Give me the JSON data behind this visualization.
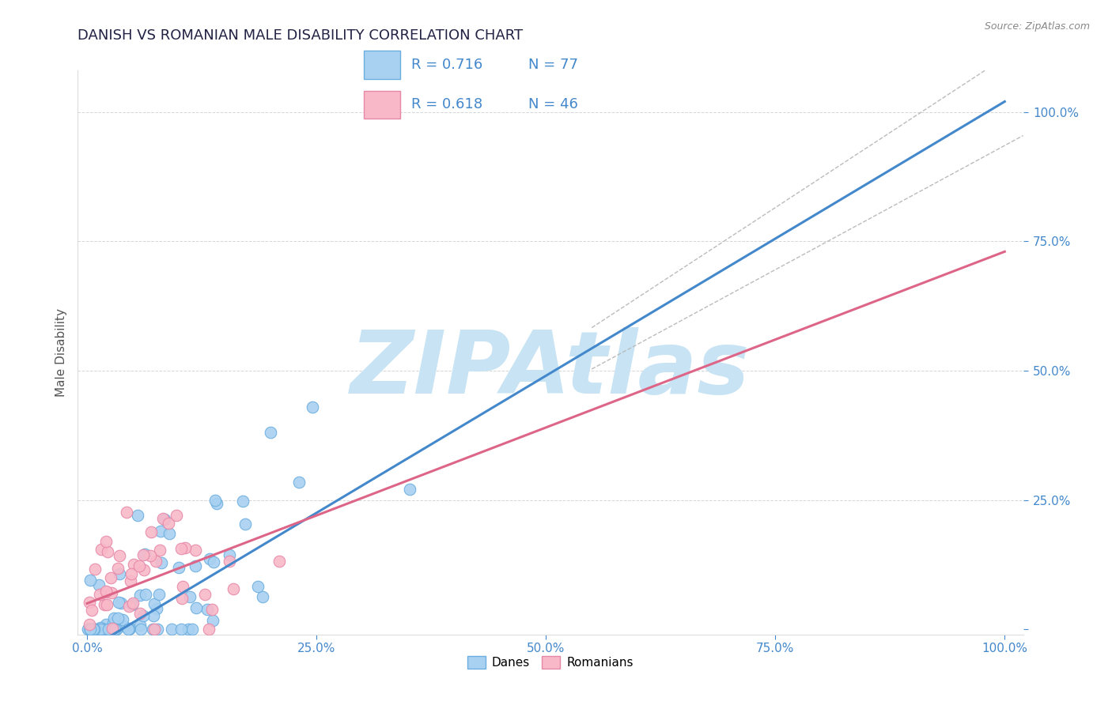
{
  "title": "DANISH VS ROMANIAN MALE DISABILITY CORRELATION CHART",
  "source_text": "Source: ZipAtlas.com",
  "ylabel": "Male Disability",
  "xlabel": "",
  "xlim": [
    -0.01,
    1.02
  ],
  "ylim": [
    -0.01,
    1.08
  ],
  "xticks": [
    0.0,
    0.25,
    0.5,
    0.75,
    1.0
  ],
  "yticks": [
    0.0,
    0.25,
    0.5,
    0.75,
    1.0
  ],
  "xtick_labels": [
    "0.0%",
    "25.0%",
    "50.0%",
    "75.0%",
    "100.0%"
  ],
  "ytick_labels": [
    "",
    "25.0%",
    "50.0%",
    "75.0%",
    "100.0%"
  ],
  "danes_color": "#A8D0F0",
  "danes_edge_color": "#6BAEE0",
  "romanians_color": "#F8B8C8",
  "romanians_edge_color": "#E888A8",
  "danes_R": 0.716,
  "danes_N": 77,
  "romanians_R": 0.618,
  "romanians_N": 46,
  "danes_line_color": "#4488CC",
  "romanians_line_color": "#DD6688",
  "confidence_line_color": "#BBBBBB",
  "grid_color": "#CCCCCC",
  "watermark_color": "#C8E4F4",
  "watermark_text": "ZIPAtlas",
  "legend_R_color": "#4488CC",
  "title_color": "#222244",
  "source_color": "#888888",
  "danes_line_intercept": -0.04,
  "danes_line_slope": 1.06,
  "romanians_line_intercept": 0.05,
  "romanians_line_slope": 0.68
}
